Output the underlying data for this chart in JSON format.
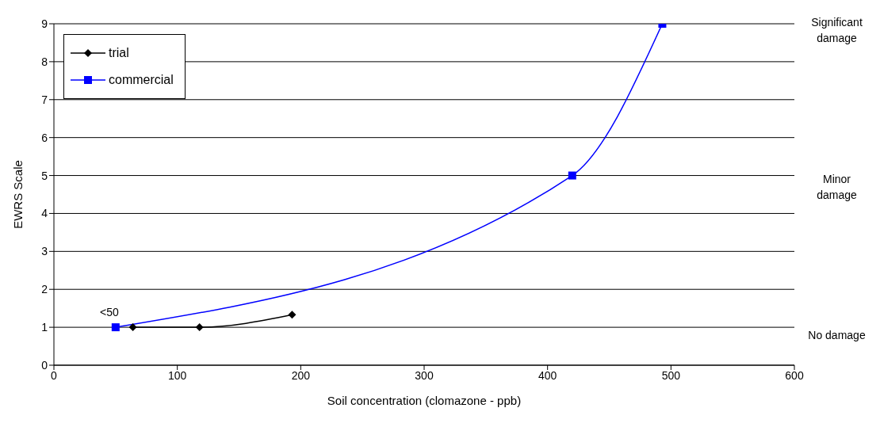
{
  "chart_data": {
    "type": "line",
    "xlabel": "Soil concentration (clomazone - ppb)",
    "ylabel": "EWRS Scale",
    "xlim": [
      0,
      600
    ],
    "xticks": [
      0,
      100,
      200,
      300,
      400,
      500,
      600
    ],
    "ylim": [
      0,
      9
    ],
    "yticks": [
      0,
      1,
      2,
      3,
      4,
      5,
      6,
      7,
      8,
      9
    ],
    "grid": "y",
    "legend": "top left",
    "series": [
      {
        "name": "trial",
        "color": "#000000",
        "marker": "diamond",
        "x": [
          64,
          118,
          193
        ],
        "values": [
          1,
          1,
          1.33
        ]
      },
      {
        "name": "commercial",
        "color": "#0000ff",
        "marker": "square",
        "x": [
          50,
          420,
          493
        ],
        "values": [
          1,
          5,
          9
        ]
      }
    ],
    "annotations": [
      {
        "text": "<50",
        "x": 50,
        "y": 1
      },
      "Significant damage",
      "Minor damage",
      "No damage"
    ]
  }
}
